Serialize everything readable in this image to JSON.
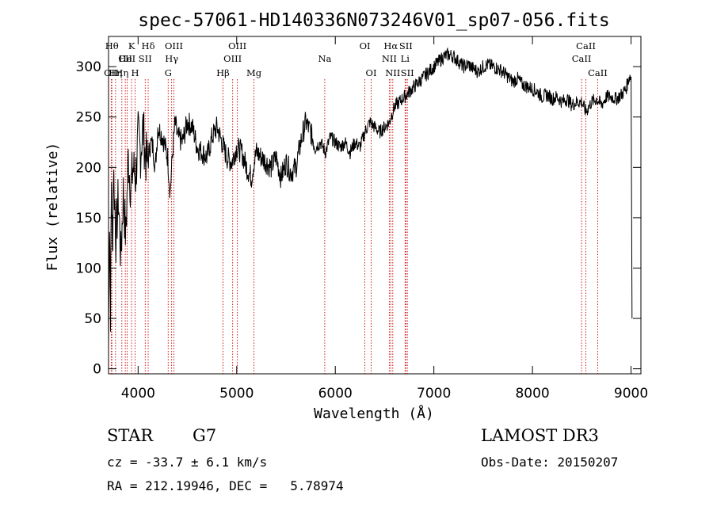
{
  "chart_data": {
    "type": "line",
    "title": "spec-57061-HD140336N073246V01_sp07-056.fits",
    "xlabel": "Wavelength (Å)",
    "ylabel": "Flux (relative)",
    "xlim": [
      3700,
      9100
    ],
    "ylim": [
      -5,
      330
    ],
    "xticks": [
      4000,
      5000,
      6000,
      7000,
      8000,
      9000
    ],
    "yticks": [
      0,
      50,
      100,
      150,
      200,
      250,
      300
    ],
    "series": [
      {
        "name": "flux",
        "x": [
          3700,
          3710,
          3720,
          3730,
          3740,
          3750,
          3775,
          3800,
          3825,
          3850,
          3875,
          3900,
          3925,
          3950,
          3975,
          4000,
          4025,
          4050,
          4075,
          4100,
          4125,
          4150,
          4175,
          4200,
          4250,
          4300,
          4325,
          4350,
          4375,
          4400,
          4450,
          4500,
          4550,
          4600,
          4650,
          4700,
          4750,
          4800,
          4850,
          4900,
          4950,
          5000,
          5050,
          5100,
          5150,
          5175,
          5200,
          5250,
          5300,
          5350,
          5400,
          5450,
          5500,
          5550,
          5600,
          5650,
          5700,
          5750,
          5800,
          5850,
          5900,
          5950,
          6000,
          6050,
          6100,
          6150,
          6200,
          6250,
          6300,
          6350,
          6400,
          6450,
          6500,
          6550,
          6563,
          6600,
          6650,
          6700,
          6750,
          6800,
          6850,
          6900,
          6950,
          7000,
          7050,
          7100,
          7150,
          7200,
          7250,
          7300,
          7350,
          7400,
          7450,
          7500,
          7550,
          7600,
          7650,
          7700,
          7750,
          7800,
          7850,
          7900,
          7950,
          8000,
          8050,
          8100,
          8150,
          8200,
          8250,
          8300,
          8350,
          8400,
          8450,
          8500,
          8542,
          8600,
          8650,
          8700,
          8750,
          8800,
          8850,
          8900,
          8950,
          8980,
          9000,
          9010
        ],
        "values": [
          20,
          150,
          60,
          190,
          110,
          200,
          130,
          170,
          110,
          175,
          130,
          210,
          180,
          200,
          190,
          230,
          215,
          240,
          210,
          205,
          225,
          220,
          200,
          240,
          230,
          210,
          175,
          215,
          245,
          230,
          225,
          245,
          240,
          220,
          215,
          210,
          230,
          240,
          225,
          210,
          205,
          220,
          215,
          200,
          190,
          205,
          215,
          210,
          205,
          200,
          210,
          190,
          205,
          195,
          200,
          225,
          245,
          235,
          220,
          225,
          215,
          230,
          225,
          220,
          225,
          215,
          225,
          220,
          235,
          245,
          240,
          235,
          240,
          245,
          250,
          260,
          265,
          270,
          275,
          280,
          285,
          290,
          295,
          300,
          305,
          310,
          312,
          310,
          305,
          300,
          302,
          298,
          295,
          300,
          302,
          300,
          298,
          295,
          290,
          285,
          288,
          282,
          280,
          278,
          275,
          270,
          272,
          268,
          270,
          265,
          268,
          262,
          265,
          265,
          255,
          265,
          268,
          262,
          270,
          270,
          268,
          272,
          278,
          290,
          290,
          50
        ]
      }
    ],
    "line_markers": [
      {
        "wavelength": 3734,
        "label": "Hθ",
        "row": 1
      },
      {
        "wavelength": 3771,
        "label": "Hη",
        "row": 3
      },
      {
        "wavelength": 3727,
        "label": "OII",
        "row": 3
      },
      {
        "wavelength": 3835,
        "label": "Hη",
        "row": 3
      },
      {
        "wavelength": 3870,
        "label": "CII",
        "row": 2
      },
      {
        "wavelength": 3889,
        "label": "HeI",
        "row": 2
      },
      {
        "wavelength": 3934,
        "label": "K",
        "row": 1
      },
      {
        "wavelength": 3969,
        "label": "H",
        "row": 3
      },
      {
        "wavelength": 4072,
        "label": "SII",
        "row": 2
      },
      {
        "wavelength": 4102,
        "label": "Hδ",
        "row": 1
      },
      {
        "wavelength": 4305,
        "label": "G",
        "row": 3
      },
      {
        "wavelength": 4340,
        "label": "Hγ",
        "row": 2
      },
      {
        "wavelength": 4363,
        "label": "OIII",
        "row": 1
      },
      {
        "wavelength": 4861,
        "label": "Hβ",
        "row": 3
      },
      {
        "wavelength": 4959,
        "label": "OIII",
        "row": 2
      },
      {
        "wavelength": 5007,
        "label": "OIII",
        "row": 1
      },
      {
        "wavelength": 5175,
        "label": "Mg",
        "row": 3
      },
      {
        "wavelength": 5893,
        "label": "Na",
        "row": 2
      },
      {
        "wavelength": 6300,
        "label": "OI",
        "row": 1
      },
      {
        "wavelength": 6364,
        "label": "OI",
        "row": 3
      },
      {
        "wavelength": 6548,
        "label": "NII",
        "row": 2
      },
      {
        "wavelength": 6563,
        "label": "Hα",
        "row": 1
      },
      {
        "wavelength": 6583,
        "label": "NII",
        "row": 3
      },
      {
        "wavelength": 6708,
        "label": "Li",
        "row": 2
      },
      {
        "wavelength": 6716,
        "label": "SII",
        "row": 1
      },
      {
        "wavelength": 6731,
        "label": "SII",
        "row": 3
      },
      {
        "wavelength": 8498,
        "label": "CaII",
        "row": 2
      },
      {
        "wavelength": 8542,
        "label": "CaII",
        "row": 1
      },
      {
        "wavelength": 8662,
        "label": "CaII",
        "row": 3
      }
    ]
  },
  "info": {
    "class": "STAR",
    "subclass": "G7",
    "survey": "LAMOST DR3",
    "cz": "cz = -33.7 ± 6.1 km/s",
    "obs_date": "Obs-Date: 20150207",
    "radec": "RA = 212.19946, DEC =   5.78974"
  }
}
